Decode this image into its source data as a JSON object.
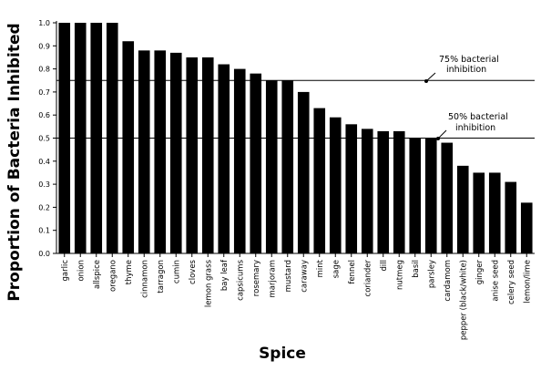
{
  "chart_data": {
    "type": "bar",
    "xlabel": "Spice",
    "ylabel": "Proportion of Bacteria Inhibited",
    "ylim": [
      0,
      1.0
    ],
    "yticks": [
      "0.0",
      "0.1",
      "0.2",
      "0.3",
      "0.4",
      "0.5",
      "0.6",
      "0.7",
      "0.8",
      "0.9",
      "1.0"
    ],
    "categories": [
      "garlic",
      "onion",
      "allspice",
      "oregano",
      "thyme",
      "cinnamon",
      "tarragon",
      "cumin",
      "cloves",
      "lemon grass",
      "bay leaf",
      "capsicums",
      "rosemary",
      "marjoram",
      "mustard",
      "caraway",
      "mint",
      "sage",
      "fennel",
      "coriander",
      "dill",
      "nutmeg",
      "basil",
      "parsley",
      "cardamom",
      "pepper (black/white)",
      "ginger",
      "anise seed",
      "celery seed",
      "lemon/lime"
    ],
    "values": [
      1.0,
      1.0,
      1.0,
      1.0,
      0.92,
      0.88,
      0.88,
      0.87,
      0.85,
      0.85,
      0.82,
      0.8,
      0.78,
      0.75,
      0.75,
      0.7,
      0.63,
      0.59,
      0.56,
      0.54,
      0.53,
      0.53,
      0.5,
      0.5,
      0.48,
      0.38,
      0.35,
      0.35,
      0.31,
      0.22
    ],
    "reference_lines": [
      {
        "value": 0.75,
        "label_line1": "75% bacterial",
        "label_line2": "inhibition"
      },
      {
        "value": 0.5,
        "label_line1": "50% bacterial",
        "label_line2": "inhibition"
      }
    ],
    "grid": false,
    "bar_color": "#000000"
  }
}
